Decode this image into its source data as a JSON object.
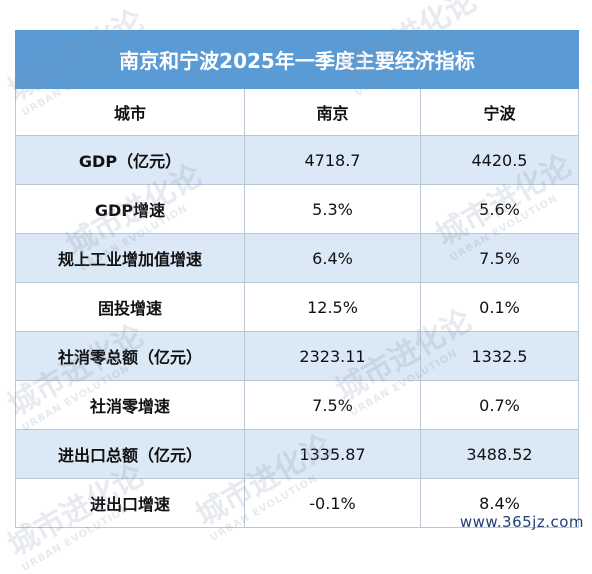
{
  "title": "南京和宁波2025年一季度主要经济指标",
  "headers": [
    "城市",
    "南京",
    "宁波"
  ],
  "rows": [
    {
      "label": "GDP（亿元）",
      "nanjing": "4718.7",
      "ningbo": "4420.5"
    },
    {
      "label": "GDP增速",
      "nanjing": "5.3%",
      "ningbo": "5.6%"
    },
    {
      "label": "规上工业增加值增速",
      "nanjing": "6.4%",
      "ningbo": "7.5%"
    },
    {
      "label": "固投增速",
      "nanjing": "12.5%",
      "ningbo": "0.1%"
    },
    {
      "label": "社消零总额（亿元）",
      "nanjing": "2323.11",
      "ningbo": "1332.5"
    },
    {
      "label": "社消零增速",
      "nanjing": "7.5%",
      "ningbo": "0.7%"
    },
    {
      "label": "进出口总额（亿元）",
      "nanjing": "1335.87",
      "ningbo": "3488.52"
    },
    {
      "label": "进出口增速",
      "nanjing": "-0.1%",
      "ningbo": "8.4%"
    }
  ],
  "watermark": {
    "text": "城市进化论",
    "subtext": "URBAN EVOLUTION"
  },
  "site_watermark": "www.365jz.com",
  "colors": {
    "title_bg": "#5b9bd5",
    "stripe": "#dbe8f5",
    "border": "#b9c6d3"
  }
}
